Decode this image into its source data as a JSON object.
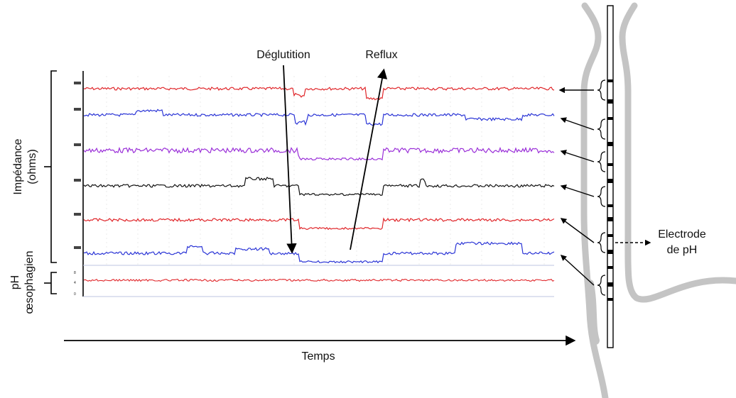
{
  "labels": {
    "deglutition": "Déglutition",
    "reflux": "Reflux",
    "impedance_line1": "Impédance",
    "impedance_line2": "(ohms)",
    "ph_line1": "pH",
    "ph_line2": "œsophagien",
    "time_axis": "Temps",
    "electrode_line1": "Electrode",
    "electrode_line2": "de pH"
  },
  "ph_ticks": [
    "8",
    "4",
    "0"
  ],
  "colors": {
    "trace_red": "#e0262a",
    "trace_blue": "#2b35d6",
    "trace_purple": "#9a2fd8",
    "trace_black": "#111111",
    "esophagus": "#c8c8c8",
    "axis": "#000000"
  },
  "traces": [
    {
      "color": "trace_red"
    },
    {
      "color": "trace_blue"
    },
    {
      "color": "trace_purple"
    },
    {
      "color": "trace_black"
    },
    {
      "color": "trace_red"
    },
    {
      "color": "trace_blue"
    }
  ]
}
